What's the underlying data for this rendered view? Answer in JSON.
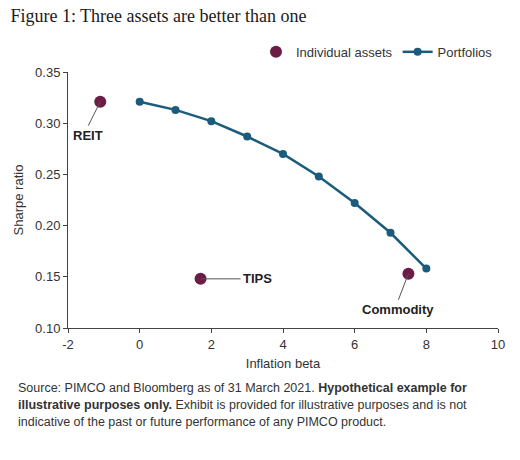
{
  "chart_data": {
    "type": "scatter",
    "title": "Figure 1: Three assets are better than one",
    "x_label": "Inflation beta",
    "y_label": "Sharpe ratio",
    "series": [
      {
        "name": "Individual assets",
        "type": "scatter",
        "marker": "circle",
        "color": "#6b1d45",
        "x": [
          -1.1,
          1.7,
          7.5
        ],
        "values": [
          0.321,
          0.148,
          0.153
        ],
        "labels": [
          "REIT",
          "TIPS",
          "Commodity"
        ]
      },
      {
        "name": "Portfolios",
        "type": "line",
        "marker": "circle",
        "color": "#1b5b7c",
        "x": [
          0,
          1,
          2,
          3,
          4,
          5,
          6,
          7,
          8
        ],
        "values": [
          0.321,
          0.313,
          0.302,
          0.287,
          0.27,
          0.248,
          0.222,
          0.193,
          0.158
        ]
      }
    ],
    "xlim": [
      -2,
      10
    ],
    "xticks": [
      -2,
      0,
      2,
      4,
      6,
      8,
      10
    ],
    "ylim": [
      0.1,
      0.35
    ],
    "yticks": [
      {
        "value": 0.1,
        "label": "0.10"
      },
      0.15,
      {
        "value": 0.2,
        "label": "0.20"
      },
      0.25,
      {
        "value": 0.3,
        "label": "0.30"
      },
      0.35
    ],
    "grid": false,
    "legend": "top right",
    "caption": [
      "Source: PIMCO and Bloomberg as of 31 March 2021. ",
      "Hypothetical example for illustrative purposes only.",
      " Exhibit is provided for illustrative purposes and is not indicative of the past or future performance of any PIMCO product."
    ]
  }
}
